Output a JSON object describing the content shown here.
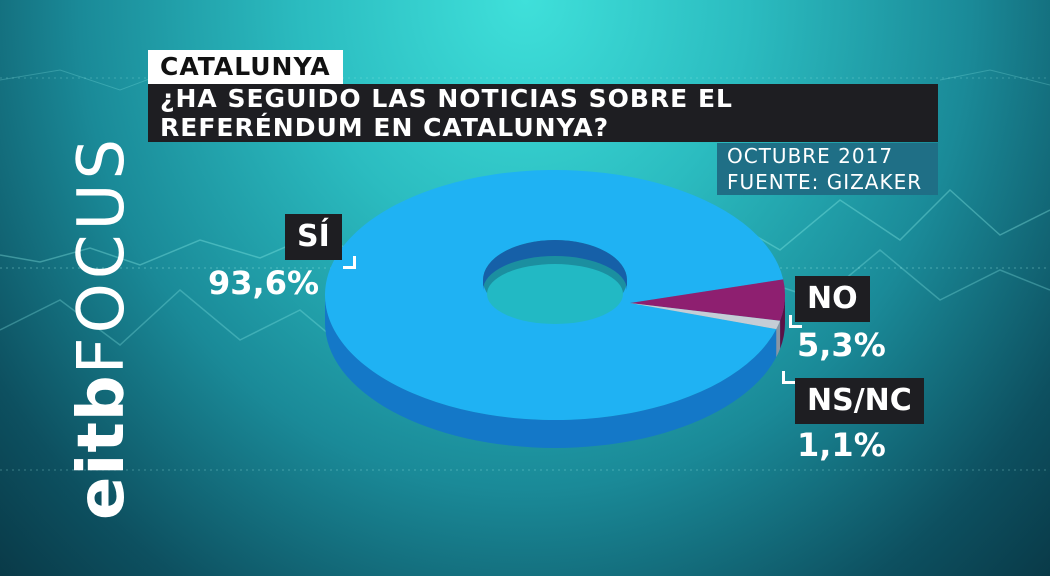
{
  "brand": {
    "part1": "eitb",
    "part2": "FOCUS"
  },
  "header": {
    "region": "CATALUNYA",
    "question": "¿HA SEGUIDO LAS NOTICIAS SOBRE EL REFERÉNDUM EN CATALUNYA?",
    "date": "OCTUBRE 2017",
    "source": "FUENTE: GIZAKER"
  },
  "colors": {
    "si": "#1fb2f3",
    "no": "#8e1f70",
    "nsnc": "#c5cdd6",
    "label_bg": "#1e1e22",
    "source_bg": "#1f6f86"
  },
  "chart_data": {
    "type": "pie",
    "categories": [
      "SÍ",
      "NO",
      "NS/NC"
    ],
    "values": [
      93.6,
      5.3,
      1.1
    ],
    "value_labels": [
      "93,6%",
      "5,3%",
      "1,1%"
    ],
    "donut": true
  }
}
